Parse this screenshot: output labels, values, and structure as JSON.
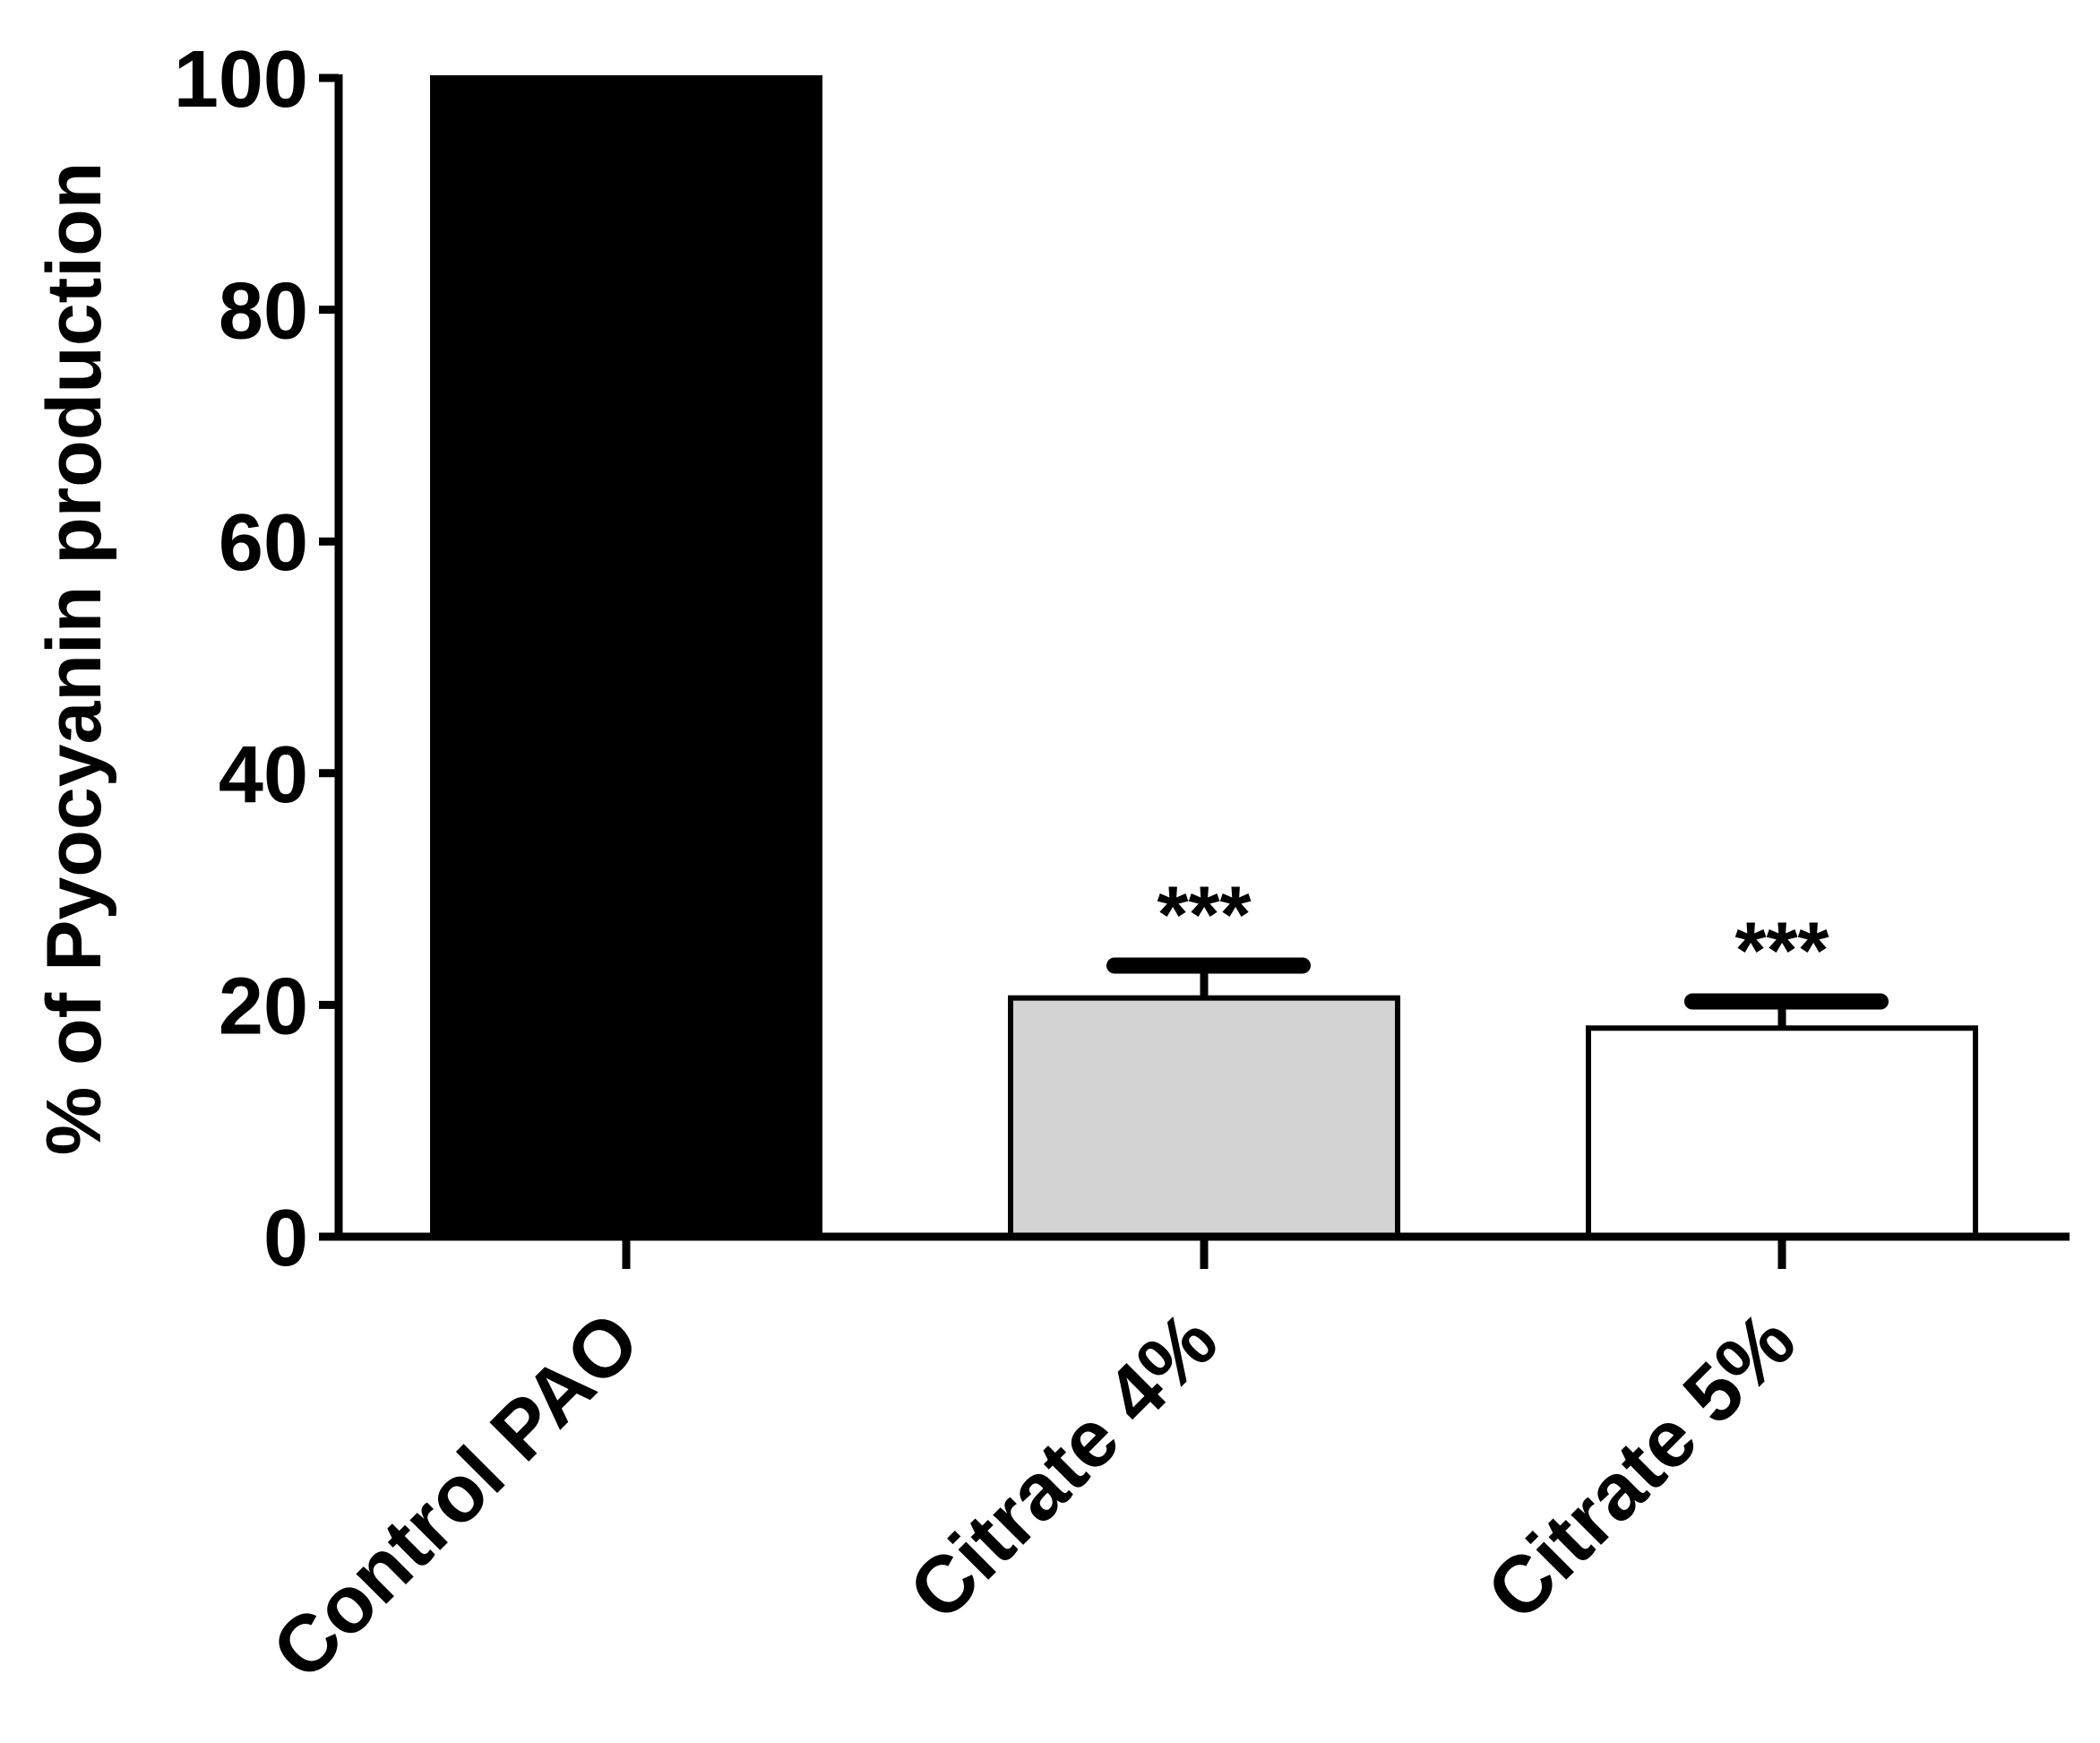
{
  "chart_data": {
    "type": "bar",
    "y_label": "% of Pyocyanin production",
    "categories": [
      "Control PAO",
      "Citrate 4%",
      "Citrate 5%"
    ],
    "values": [
      100,
      20.6,
      18.0
    ],
    "errors": [
      null,
      2.8,
      2.3
    ],
    "colors": [
      "#000000",
      "#d3d3d3",
      "#ffffff"
    ],
    "significance": [
      null,
      "***",
      "***"
    ],
    "ylim": [
      0,
      100
    ],
    "yticks": [
      0,
      20,
      40,
      60,
      80,
      100
    ],
    "grid": false
  }
}
